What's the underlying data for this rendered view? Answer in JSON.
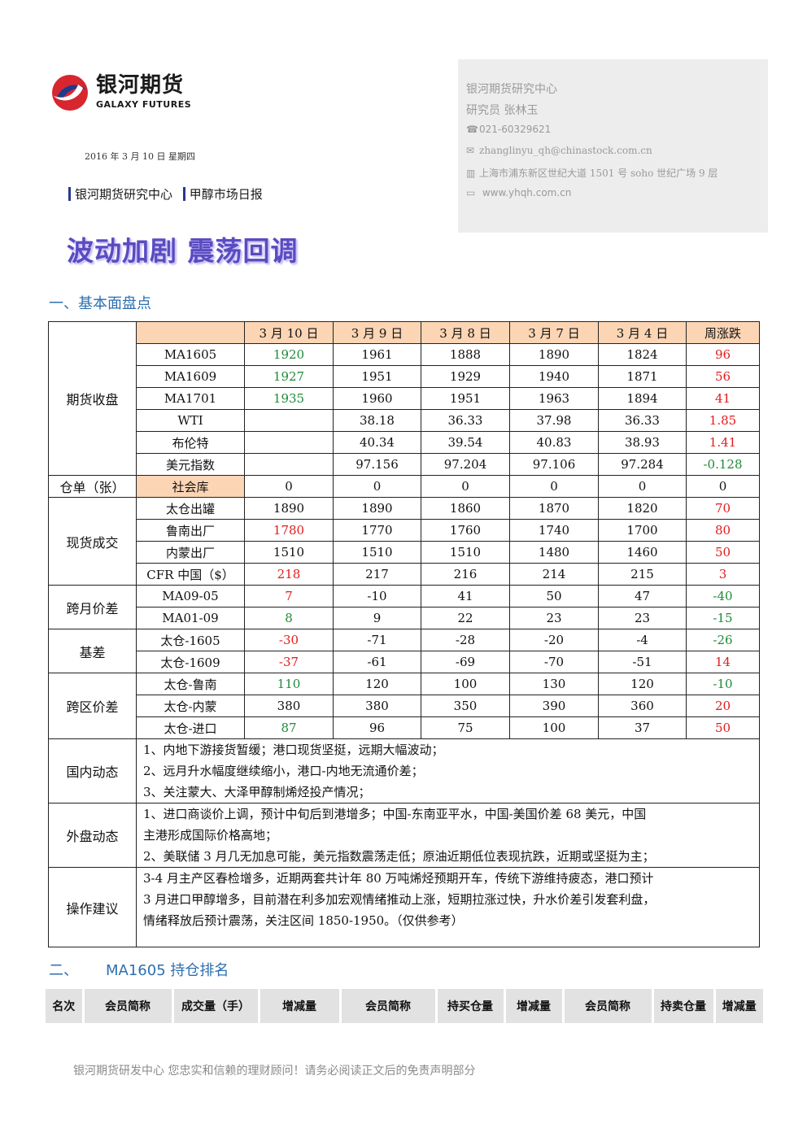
{
  "header": {
    "logo_cn": "银河期货",
    "logo_en": "GALAXY FUTURES",
    "date": "2016 年 3 月 10 日   星期四",
    "crumb1": "银河期货研究中心",
    "crumb2": "甲醇市场日报"
  },
  "contact": {
    "org": "银河期货研究中心",
    "researcher": "研究员   张林玉",
    "phone": "021-60329621",
    "email": "zhanglinyu_qh@chinastock.com.cn",
    "address": "上海市浦东新区世纪大道 1501 号 soho 世纪广场 9 层",
    "website": "www.yhqh.com.cn"
  },
  "title": "波动加剧  震荡回调",
  "section1": "一、基本面盘点",
  "table": {
    "header": [
      "3 月 10 日",
      "3 月 9 日",
      "3 月 8 日",
      "3 月 7 日",
      "3 月 4 日",
      "周涨跌"
    ],
    "categories": {
      "futures": "期货收盘",
      "warrant": "仓单（张）",
      "spot": "现货成交",
      "calendar": "跨月价差",
      "basis": "基差",
      "regional": "跨区价差",
      "domestic": "国内动态",
      "overseas": "外盘动态",
      "advice": "操作建议"
    },
    "rows": [
      {
        "label": "MA1605",
        "cells": [
          "1920",
          "1961",
          "1888",
          "1890",
          "1824",
          "96"
        ]
      },
      {
        "label": "MA1609",
        "cells": [
          "1927",
          "1951",
          "1929",
          "1940",
          "1871",
          "56"
        ]
      },
      {
        "label": "MA1701",
        "cells": [
          "1935",
          "1960",
          "1951",
          "1963",
          "1894",
          "41"
        ]
      },
      {
        "label": "WTI",
        "cells": [
          "",
          "38.18",
          "36.33",
          "37.98",
          "36.33",
          "1.85"
        ]
      },
      {
        "label": "布伦特",
        "cells": [
          "",
          "40.34",
          "39.54",
          "40.83",
          "38.93",
          "1.41"
        ]
      },
      {
        "label": "美元指数",
        "cells": [
          "",
          "97.156",
          "97.204",
          "97.106",
          "97.284",
          "-0.128"
        ]
      },
      {
        "label": "社会库",
        "cells": [
          "0",
          "0",
          "0",
          "0",
          "0",
          "0"
        ]
      },
      {
        "label": "太仓出罐",
        "cells": [
          "1890",
          "1890",
          "1860",
          "1870",
          "1820",
          "70"
        ]
      },
      {
        "label": "鲁南出厂",
        "cells": [
          "1780",
          "1770",
          "1760",
          "1740",
          "1700",
          "80"
        ]
      },
      {
        "label": "内蒙出厂",
        "cells": [
          "1510",
          "1510",
          "1510",
          "1480",
          "1460",
          "50"
        ]
      },
      {
        "label": "CFR 中国（$）",
        "cells": [
          "218",
          "217",
          "216",
          "214",
          "215",
          "3"
        ]
      },
      {
        "label": "MA09-05",
        "cells": [
          "7",
          "-10",
          "41",
          "50",
          "47",
          "-40"
        ]
      },
      {
        "label": "MA01-09",
        "cells": [
          "8",
          "9",
          "22",
          "23",
          "23",
          "-15"
        ]
      },
      {
        "label": "太仓-1605",
        "cells": [
          "-30",
          "-71",
          "-28",
          "-20",
          "-4",
          "-26"
        ]
      },
      {
        "label": "太仓-1609",
        "cells": [
          "-37",
          "-61",
          "-69",
          "-70",
          "-51",
          "14"
        ]
      },
      {
        "label": "太仓-鲁南",
        "cells": [
          "110",
          "120",
          "100",
          "130",
          "120",
          "-10"
        ]
      },
      {
        "label": "太仓-内蒙",
        "cells": [
          "380",
          "380",
          "350",
          "390",
          "360",
          "20"
        ]
      },
      {
        "label": "太仓-进口",
        "cells": [
          "87",
          "96",
          "75",
          "100",
          "37",
          "50"
        ]
      }
    ],
    "domestic_lines": [
      "1、内地下游接货暂缓；港口现货坚挺，远期大幅波动；",
      "2、远月升水幅度继续缩小，港口-内地无流通价差；",
      "3、关注蒙大、大泽甲醇制烯烃投产情况；"
    ],
    "overseas_lines": [
      "1、进口商谈价上调，预计中旬后到港增多；中国-东南亚平水，中国-美国价差 68 美元，中国",
      "主港形成国际价格高地；",
      "2、美联储 3 月几无加息可能，美元指数震荡走低；原油近期低位表现抗跌，近期或坚挺为主；"
    ],
    "advice_lines": [
      "3-4 月主产区春检增多，近期两套共计年 80 万吨烯烃预期开车，传统下游维持疲态，港口预计",
      "3 月进口甲醇增多，目前潜在利多加宏观情绪推动上涨，短期拉涨过快，升水价差引发套利盘，",
      "情绪释放后预计震荡，关注区间 1850-1950。（仅供参考）"
    ]
  },
  "section2_num": "二、",
  "section2": "MA1605 持仓排名",
  "rank_headers": [
    "名次",
    "会员简称",
    "成交量（手）",
    "增减量",
    "会员简称",
    "持买仓量",
    "增减量",
    "会员简称",
    "持卖仓量",
    "增减量"
  ],
  "footer": "银河期货研发中心  您忠实和信赖的理财顾问！请务必阅读正文后的免责声明部分",
  "colors": {
    "green": "#1f8a3a",
    "red": "#e01b1b",
    "header_fill": "#fcd5b4",
    "title": "#5a4bc0",
    "section": "#2d6fb0"
  }
}
